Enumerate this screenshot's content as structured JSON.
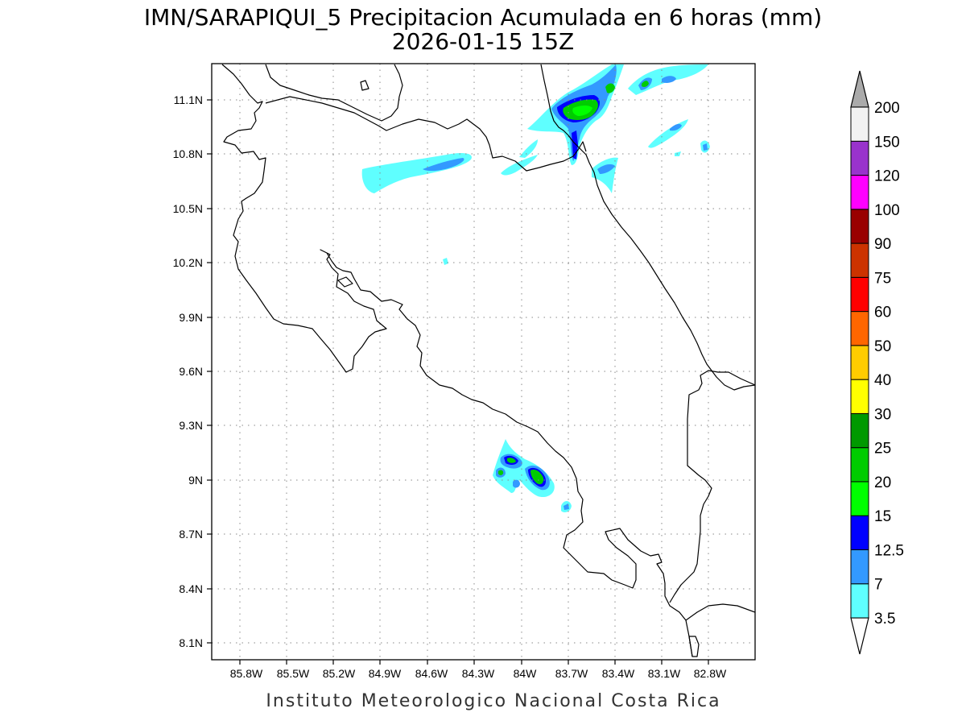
{
  "title": {
    "line1": "IMN/SARAPIQUI_5 Precipitacion Acumulada en 6 horas (mm)",
    "line2": "2026-01-15 15Z"
  },
  "footer": "Instituto Meteorologico Nacional Costa Rica",
  "axes": {
    "x_ticks": [
      "85.8W",
      "85.5W",
      "85.2W",
      "84.9W",
      "84.6W",
      "84.3W",
      "84W",
      "83.7W",
      "83.4W",
      "83.1W",
      "82.8W"
    ],
    "y_ticks": [
      "11.1N",
      "10.8N",
      "10.5N",
      "10.2N",
      "9.9N",
      "9.6N",
      "9.3N",
      "9N",
      "8.7N",
      "8.4N",
      "8.1N"
    ],
    "lon_range": [
      -86.1,
      -83.1
    ],
    "lat_range": [
      8.0,
      11.3
    ]
  },
  "colorbar": {
    "labels": [
      "3.5",
      "7",
      "12.5",
      "15",
      "20",
      "25",
      "30",
      "40",
      "50",
      "60",
      "75",
      "90",
      "100",
      "120",
      "150",
      "200"
    ],
    "colors": [
      "#5fffff",
      "#3399ff",
      "#0000ff",
      "#00ff00",
      "#00cc00",
      "#009900",
      "#ffff00",
      "#ffcc00",
      "#ff6600",
      "#ff0000",
      "#cc3300",
      "#990000",
      "#ff00ff",
      "#9933cc",
      "#f2f2f2"
    ],
    "top_arrow_color": "#aaaaaa",
    "bottom_arrow_color": "#ffffff"
  }
}
